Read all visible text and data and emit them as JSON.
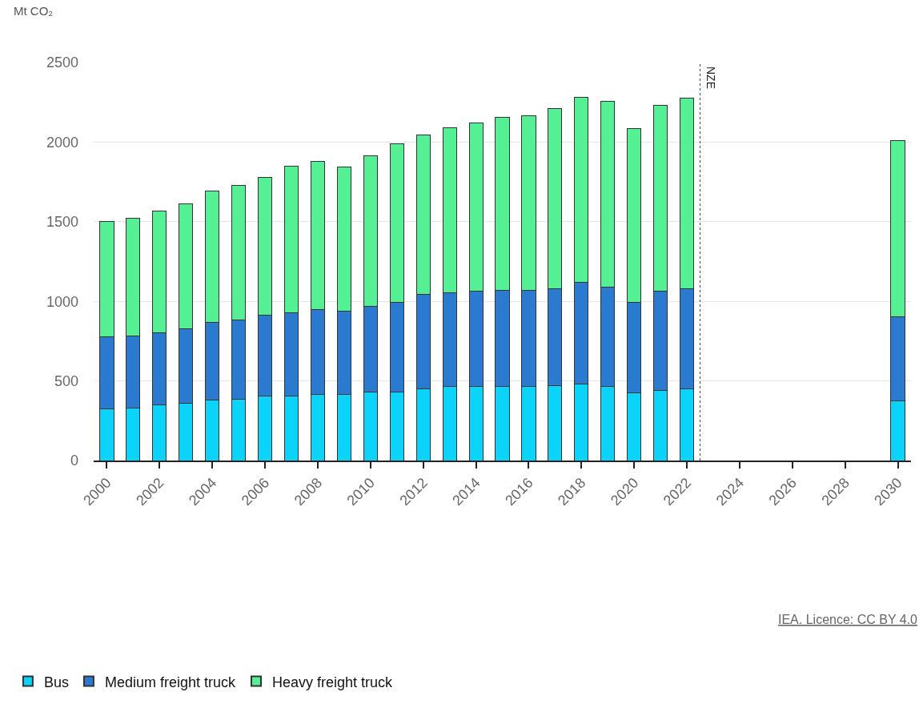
{
  "chart_data": {
    "type": "bar",
    "stacked": true,
    "ylabel": "Mt CO₂",
    "x": [
      2000,
      2001,
      2002,
      2003,
      2004,
      2005,
      2006,
      2007,
      2008,
      2009,
      2010,
      2011,
      2012,
      2013,
      2014,
      2015,
      2016,
      2017,
      2018,
      2019,
      2020,
      2021,
      2022,
      2030
    ],
    "series": [
      {
        "name": "Bus",
        "color": "#0bd3fa",
        "values": [
          322,
          330,
          350,
          362,
          378,
          387,
          403,
          403,
          413,
          413,
          430,
          432,
          450,
          467,
          467,
          467,
          467,
          470,
          478,
          467,
          425,
          442,
          450,
          376
        ]
      },
      {
        "name": "Medium freight truck",
        "color": "#2a7bcf",
        "values": [
          453,
          453,
          450,
          468,
          489,
          496,
          510,
          527,
          537,
          527,
          537,
          563,
          592,
          586,
          595,
          603,
          603,
          608,
          639,
          621,
          570,
          620,
          628,
          527
        ]
      },
      {
        "name": "Heavy freight truck",
        "color": "#55ef94",
        "values": [
          725,
          739,
          767,
          783,
          828,
          847,
          864,
          920,
          928,
          902,
          946,
          995,
          1003,
          1039,
          1060,
          1085,
          1097,
          1134,
          1166,
          1170,
          1088,
          1168,
          1197,
          1106
        ]
      }
    ],
    "xlim": [
      1999.5,
      2030.5
    ],
    "xticks": [
      2000,
      2002,
      2004,
      2006,
      2008,
      2010,
      2012,
      2014,
      2016,
      2018,
      2020,
      2022,
      2024,
      2026,
      2028,
      2030
    ],
    "ylim": [
      0,
      2500
    ],
    "yticks": [
      0,
      500,
      1000,
      1500,
      2000,
      2500
    ],
    "grid": "y",
    "legend": "bottom left",
    "ref_lines": [
      {
        "axis": "x",
        "value": 2022.5,
        "label": "NZE",
        "line_style": "dotted",
        "color": "#555555"
      }
    ],
    "annotations": [
      "IEA. Licence: CC BY 4.0"
    ]
  }
}
